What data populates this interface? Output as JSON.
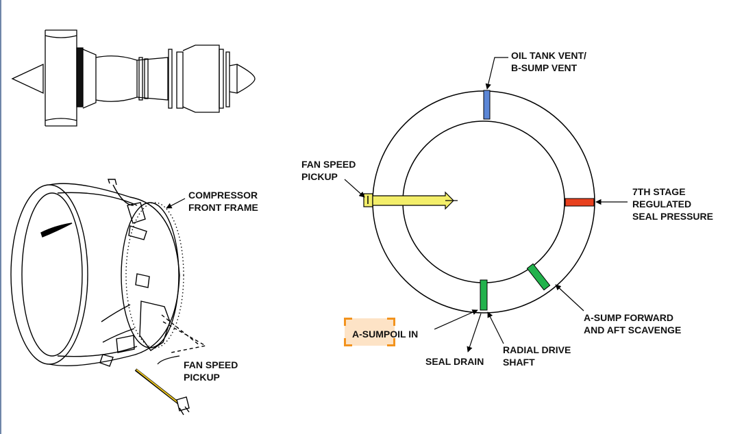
{
  "labels": {
    "compressor_front_frame": [
      "COMPRESSOR",
      "FRONT FRAME"
    ],
    "fan_speed_pickup_left": [
      "FAN SPEED",
      "PICKUP"
    ],
    "fan_speed_pickup_right": [
      "FAN SPEED",
      "PICKUP"
    ],
    "oil_tank_vent": [
      "OIL TANK VENT/",
      "B-SUMP VENT"
    ],
    "seventh_stage": [
      "7TH STAGE",
      "REGULATED",
      "SEAL PRESSURE"
    ],
    "a_sump_forward": [
      "A-SUMP FORWARD",
      "AND AFT SCAVENGE"
    ],
    "a_sump_oil_in_highlight": "A-SUMP",
    "a_sump_oil_in_rest": "OIL IN",
    "seal_drain": "SEAL DRAIN",
    "radial_drive": [
      "RADIAL DRIVE",
      "SHAFT"
    ]
  },
  "colors": {
    "vent_port": "#5b86d6",
    "seal_pressure_port": "#e8411f",
    "scavenge_port": "#22b24c",
    "fan_speed_probe": "#f3ee6a",
    "highlight_fill": "#fde3c6",
    "highlight_border": "#f2931e",
    "left_edge": "#6f86a8"
  }
}
